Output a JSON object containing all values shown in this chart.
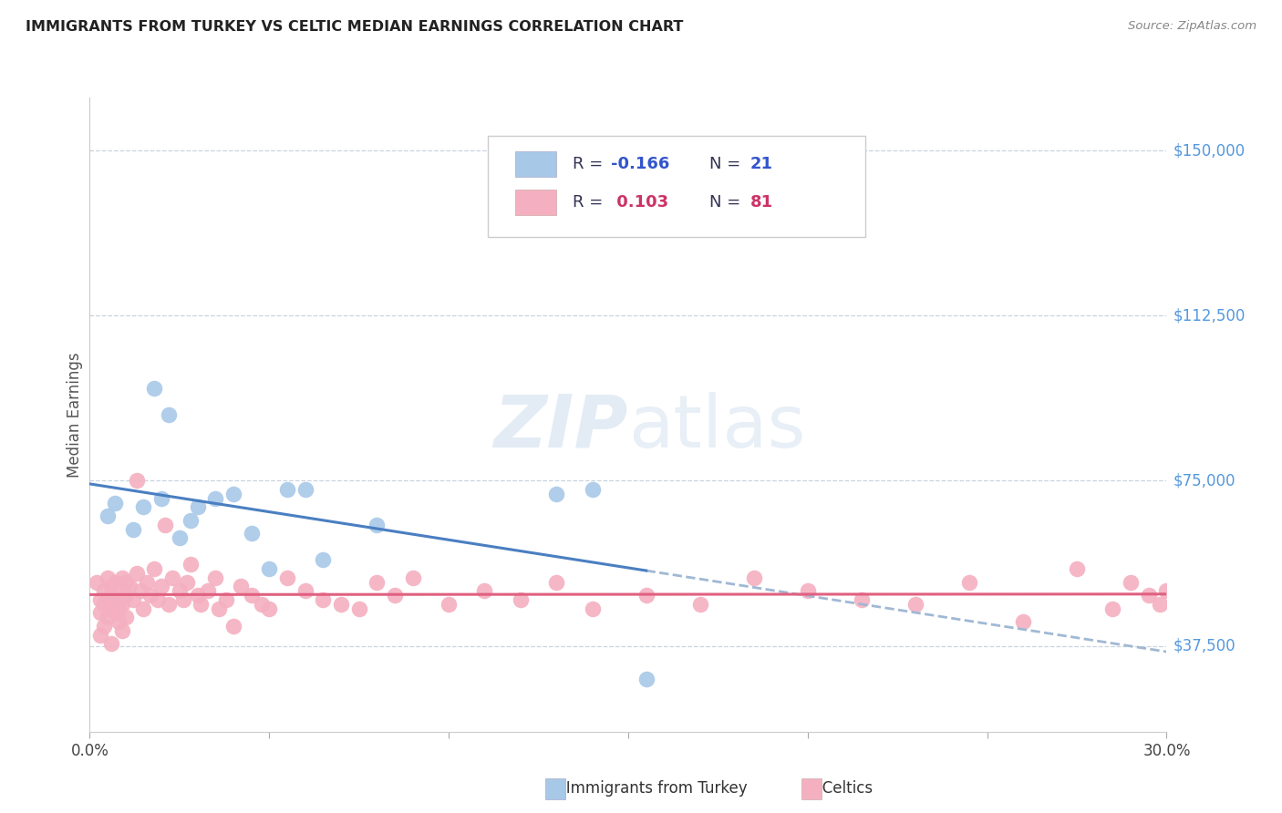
{
  "title": "IMMIGRANTS FROM TURKEY VS CELTIC MEDIAN EARNINGS CORRELATION CHART",
  "source": "Source: ZipAtlas.com",
  "ylabel": "Median Earnings",
  "watermark_zip": "ZIP",
  "watermark_atlas": "atlas",
  "legend": {
    "turkey_r": "-0.166",
    "turkey_n": "21",
    "celtics_r": "0.103",
    "celtics_n": "81"
  },
  "ytick_vals": [
    37500,
    75000,
    112500,
    150000
  ],
  "xlim": [
    0.0,
    0.3
  ],
  "ylim": [
    18000,
    162000
  ],
  "turkey_color": "#a8c8e8",
  "celtics_color": "#f4b0c0",
  "trend_turkey_color": "#4a7fc1",
  "trend_celtics_color": "#e06080",
  "dashed_color": "#a0b8d4",
  "background_color": "#ffffff",
  "grid_color": "#c8d4e0",
  "title_color": "#222222",
  "source_color": "#888888",
  "ytick_color": "#5599dd",
  "legend_text_blue": "#3355aa",
  "legend_text_pink": "#cc3366",
  "turkey_points_x": [
    0.005,
    0.007,
    0.012,
    0.015,
    0.018,
    0.02,
    0.022,
    0.025,
    0.028,
    0.03,
    0.035,
    0.04,
    0.045,
    0.05,
    0.055,
    0.06,
    0.065,
    0.08,
    0.13,
    0.14,
    0.155
  ],
  "turkey_points_y": [
    67000,
    70000,
    64000,
    69000,
    96000,
    71000,
    90000,
    62000,
    66000,
    69000,
    71000,
    72000,
    63000,
    55000,
    73000,
    73000,
    57000,
    65000,
    72000,
    73000,
    30000
  ],
  "celtics_points_x": [
    0.002,
    0.003,
    0.003,
    0.004,
    0.004,
    0.005,
    0.005,
    0.005,
    0.006,
    0.006,
    0.007,
    0.007,
    0.008,
    0.008,
    0.009,
    0.009,
    0.01,
    0.01,
    0.01,
    0.011,
    0.012,
    0.013,
    0.013,
    0.014,
    0.015,
    0.016,
    0.017,
    0.018,
    0.019,
    0.02,
    0.021,
    0.022,
    0.023,
    0.025,
    0.026,
    0.027,
    0.028,
    0.03,
    0.031,
    0.033,
    0.035,
    0.036,
    0.038,
    0.04,
    0.042,
    0.045,
    0.048,
    0.05,
    0.055,
    0.06,
    0.065,
    0.07,
    0.075,
    0.08,
    0.085,
    0.09,
    0.1,
    0.11,
    0.12,
    0.13,
    0.14,
    0.155,
    0.17,
    0.185,
    0.2,
    0.215,
    0.23,
    0.245,
    0.26,
    0.275,
    0.285,
    0.29,
    0.295,
    0.298,
    0.3,
    0.003,
    0.004,
    0.006,
    0.007,
    0.008,
    0.009
  ],
  "celtics_points_y": [
    52000,
    48000,
    45000,
    50000,
    47000,
    53000,
    46000,
    44000,
    51000,
    49000,
    52000,
    48000,
    50000,
    46000,
    53000,
    47000,
    52000,
    49000,
    44000,
    51000,
    48000,
    75000,
    54000,
    50000,
    46000,
    52000,
    49000,
    55000,
    48000,
    51000,
    65000,
    47000,
    53000,
    50000,
    48000,
    52000,
    56000,
    49000,
    47000,
    50000,
    53000,
    46000,
    48000,
    42000,
    51000,
    49000,
    47000,
    46000,
    53000,
    50000,
    48000,
    47000,
    46000,
    52000,
    49000,
    53000,
    47000,
    50000,
    48000,
    52000,
    46000,
    49000,
    47000,
    53000,
    50000,
    48000,
    47000,
    52000,
    43000,
    55000,
    46000,
    52000,
    49000,
    47000,
    50000,
    40000,
    42000,
    38000,
    45000,
    43000,
    41000
  ]
}
